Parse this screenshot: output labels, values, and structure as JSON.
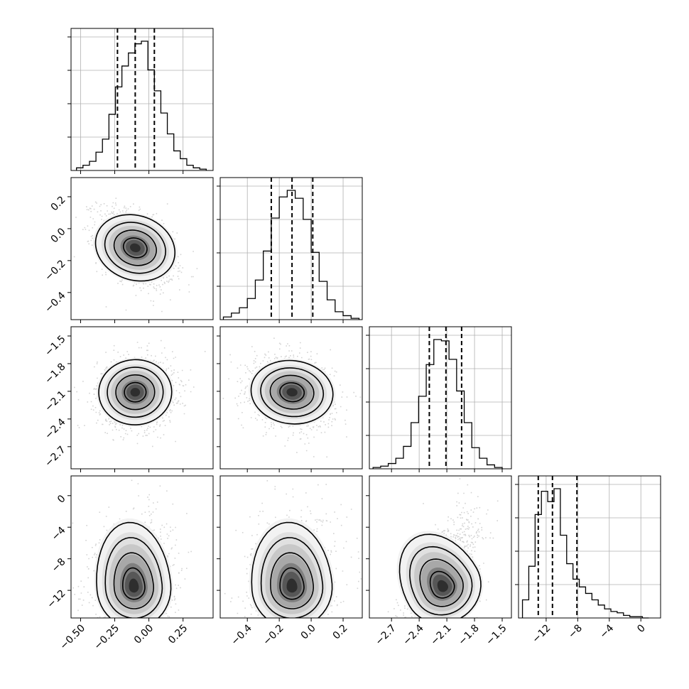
{
  "chart_data": {
    "type": "corner",
    "n_params": 4,
    "grid": true,
    "ranges": [
      [
        -0.57,
        0.47
      ],
      [
        -0.57,
        0.32
      ],
      [
        -2.94,
        -1.4
      ],
      [
        -15.5,
        2.5
      ]
    ],
    "ticks": [
      [
        -0.5,
        -0.25,
        0.0,
        0.25
      ],
      [
        -0.4,
        -0.2,
        0.0,
        0.2
      ],
      [
        -2.7,
        -2.4,
        -2.1,
        -1.8,
        -1.5
      ],
      [
        -12,
        -8,
        -4,
        0
      ]
    ],
    "tick_labels": [
      [
        "−0.50",
        "−0.25",
        "0.00",
        "0.25"
      ],
      [
        "−0.4",
        "−0.2",
        "0.0",
        "0.2"
      ],
      [
        "−2.7",
        "−2.4",
        "−2.1",
        "−1.8",
        "−1.5"
      ],
      [
        "−12",
        "−8",
        "−4",
        "0"
      ]
    ],
    "histograms": [
      {
        "bin_edges_range": [
          -0.53,
          0.42
        ],
        "counts": [
          0.02,
          0.04,
          0.07,
          0.14,
          0.24,
          0.43,
          0.64,
          0.8,
          0.9,
          0.97,
          0.99,
          0.77,
          0.61,
          0.44,
          0.28,
          0.15,
          0.09,
          0.04,
          0.02,
          0.01
        ],
        "quantiles": [
          -0.23,
          -0.1,
          0.04
        ]
      },
      {
        "bin_edges_range": [
          -0.55,
          0.3
        ],
        "counts": [
          0.02,
          0.05,
          0.09,
          0.16,
          0.3,
          0.52,
          0.77,
          0.93,
          0.98,
          0.92,
          0.76,
          0.51,
          0.29,
          0.15,
          0.06,
          0.03,
          0.01
        ],
        "quantiles": [
          -0.25,
          -0.12,
          0.01
        ]
      },
      {
        "bin_edges_range": [
          -2.9,
          -1.5
        ],
        "counts": [
          0.01,
          0.02,
          0.04,
          0.08,
          0.17,
          0.35,
          0.55,
          0.79,
          0.98,
          0.97,
          0.83,
          0.59,
          0.35,
          0.16,
          0.08,
          0.03,
          0.01
        ],
        "quantiles": [
          -2.29,
          -2.11,
          -1.94
        ]
      },
      {
        "bin_edges_range": [
          -15.0,
          1.0
        ],
        "counts": [
          0.14,
          0.4,
          0.8,
          0.98,
          0.9,
          1.0,
          0.64,
          0.42,
          0.3,
          0.24,
          0.19,
          0.14,
          0.1,
          0.07,
          0.05,
          0.04,
          0.02,
          0.01,
          0.01,
          0.0
        ],
        "quantiles": [
          -13.0,
          -11.2,
          -8.1
        ]
      }
    ],
    "pairs": [
      {
        "row": 1,
        "col": 0,
        "center": [
          -0.1,
          -0.12
        ],
        "sigma": [
          0.14,
          0.12
        ],
        "rho": -0.45,
        "skew": 0
      },
      {
        "row": 2,
        "col": 0,
        "center": [
          -0.1,
          -2.11
        ],
        "sigma": [
          0.14,
          0.19
        ],
        "rho": 0.05,
        "skew": 0
      },
      {
        "row": 2,
        "col": 1,
        "center": [
          -0.12,
          -2.11
        ],
        "sigma": [
          0.13,
          0.19
        ],
        "rho": -0.18,
        "skew": 0
      },
      {
        "row": 3,
        "col": 0,
        "center": [
          -0.11,
          -11.6
        ],
        "sigma": [
          0.14,
          2.8
        ],
        "rho": 0.1,
        "skew": 1.6
      },
      {
        "row": 3,
        "col": 1,
        "center": [
          -0.12,
          -11.6
        ],
        "sigma": [
          0.13,
          2.8
        ],
        "rho": 0.1,
        "skew": 1.6
      },
      {
        "row": 3,
        "col": 2,
        "center": [
          -2.14,
          -11.6
        ],
        "sigma": [
          0.19,
          2.8
        ],
        "rho": 0.6,
        "skew": 1.6
      }
    ],
    "contour_levels_sigma": [
      0.5,
      1.0,
      1.5,
      2.0
    ]
  }
}
